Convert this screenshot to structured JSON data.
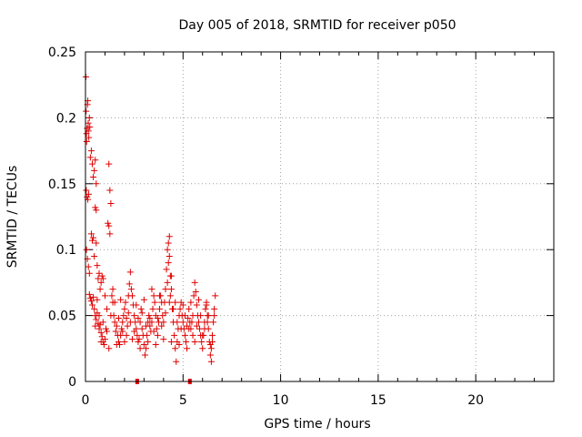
{
  "chart_data": {
    "type": "scatter",
    "title": "Day 005 of 2018, SRMTID for receiver p050",
    "xlabel": "GPS time / hours",
    "ylabel": "SRMTID / TECUs",
    "xlim": [
      0,
      24
    ],
    "ylim": [
      0,
      0.25
    ],
    "x_ticks": [
      0,
      5,
      10,
      15,
      20
    ],
    "x_tick_labels": [
      "0",
      "5",
      "10",
      "15",
      "20"
    ],
    "y_ticks": [
      0,
      0.05,
      0.1,
      0.15,
      0.2,
      0.25
    ],
    "y_tick_labels": [
      "0",
      "0.05",
      "0.1",
      "0.15",
      "0.2",
      "0.25"
    ],
    "grid": true,
    "marker": "+",
    "color": "#e00000",
    "series": [
      {
        "name": "SRMTID",
        "points": [
          [
            0.02,
            0.231
          ],
          [
            0.03,
            0.205
          ],
          [
            0.05,
            0.188
          ],
          [
            0.06,
            0.182
          ],
          [
            0.08,
            0.192
          ],
          [
            0.1,
            0.21
          ],
          [
            0.12,
            0.213
          ],
          [
            0.14,
            0.196
          ],
          [
            0.15,
            0.19
          ],
          [
            0.17,
            0.185
          ],
          [
            0.2,
            0.2
          ],
          [
            0.22,
            0.193
          ],
          [
            0.25,
            0.17
          ],
          [
            0.3,
            0.175
          ],
          [
            0.35,
            0.165
          ],
          [
            0.4,
            0.155
          ],
          [
            0.45,
            0.16
          ],
          [
            0.5,
            0.168
          ],
          [
            0.55,
            0.15
          ],
          [
            0.04,
            0.145
          ],
          [
            0.08,
            0.14
          ],
          [
            0.12,
            0.138
          ],
          [
            0.16,
            0.142
          ],
          [
            0.5,
            0.132
          ],
          [
            0.55,
            0.13
          ],
          [
            0.05,
            0.1
          ],
          [
            0.1,
            0.093
          ],
          [
            0.15,
            0.087
          ],
          [
            0.2,
            0.082
          ],
          [
            0.3,
            0.112
          ],
          [
            0.35,
            0.107
          ],
          [
            0.4,
            0.109
          ],
          [
            0.45,
            0.095
          ],
          [
            0.55,
            0.105
          ],
          [
            0.6,
            0.088
          ],
          [
            0.65,
            0.078
          ],
          [
            0.7,
            0.082
          ],
          [
            0.75,
            0.07
          ],
          [
            0.8,
            0.075
          ],
          [
            0.85,
            0.08
          ],
          [
            0.9,
            0.078
          ],
          [
            0.2,
            0.066
          ],
          [
            0.25,
            0.063
          ],
          [
            0.3,
            0.061
          ],
          [
            0.35,
            0.058
          ],
          [
            0.4,
            0.064
          ],
          [
            0.45,
            0.055
          ],
          [
            0.5,
            0.05
          ],
          [
            0.55,
            0.047
          ],
          [
            0.6,
            0.052
          ],
          [
            0.65,
            0.044
          ],
          [
            0.7,
            0.04
          ],
          [
            0.75,
            0.043
          ],
          [
            0.8,
            0.037
          ],
          [
            0.85,
            0.034
          ],
          [
            0.9,
            0.03
          ],
          [
            0.95,
            0.028
          ],
          [
            1.0,
            0.032
          ],
          [
            1.05,
            0.04
          ],
          [
            1.1,
            0.055
          ],
          [
            1.15,
            0.12
          ],
          [
            1.2,
            0.118
          ],
          [
            1.25,
            0.112
          ],
          [
            1.2,
            0.165
          ],
          [
            1.25,
            0.145
          ],
          [
            1.3,
            0.135
          ],
          [
            1.35,
            0.065
          ],
          [
            1.4,
            0.06
          ],
          [
            1.45,
            0.05
          ],
          [
            1.5,
            0.045
          ],
          [
            1.55,
            0.038
          ],
          [
            1.6,
            0.042
          ],
          [
            1.65,
            0.035
          ],
          [
            1.7,
            0.03
          ],
          [
            1.75,
            0.028
          ],
          [
            1.8,
            0.035
          ],
          [
            1.85,
            0.04
          ],
          [
            1.9,
            0.045
          ],
          [
            1.95,
            0.05
          ],
          [
            2.0,
            0.055
          ],
          [
            2.05,
            0.06
          ],
          [
            2.1,
            0.048
          ],
          [
            2.15,
            0.042
          ],
          [
            2.2,
            0.052
          ],
          [
            2.25,
            0.074
          ],
          [
            2.3,
            0.083
          ],
          [
            2.35,
            0.07
          ],
          [
            2.4,
            0.065
          ],
          [
            2.45,
            0.058
          ],
          [
            2.5,
            0.05
          ],
          [
            2.55,
            0.045
          ],
          [
            2.6,
            0.04
          ],
          [
            2.65,
            0.035
          ],
          [
            2.7,
            0.03
          ],
          [
            2.75,
            0.032
          ],
          [
            2.8,
            0.045
          ],
          [
            2.85,
            0.055
          ],
          [
            2.9,
            0.04
          ],
          [
            2.95,
            0.035
          ],
          [
            3.0,
            0.028
          ],
          [
            3.05,
            0.02
          ],
          [
            3.1,
            0.025
          ],
          [
            3.15,
            0.035
          ],
          [
            3.2,
            0.045
          ],
          [
            3.25,
            0.05
          ],
          [
            3.3,
            0.042
          ],
          [
            3.35,
            0.038
          ],
          [
            3.4,
            0.045
          ],
          [
            3.45,
            0.055
          ],
          [
            3.5,
            0.065
          ],
          [
            3.55,
            0.06
          ],
          [
            3.6,
            0.05
          ],
          [
            3.65,
            0.04
          ],
          [
            3.7,
            0.035
          ],
          [
            3.75,
            0.045
          ],
          [
            3.8,
            0.055
          ],
          [
            3.85,
            0.065
          ],
          [
            3.9,
            0.06
          ],
          [
            3.95,
            0.05
          ],
          [
            4.0,
            0.045
          ],
          [
            4.05,
            0.06
          ],
          [
            4.1,
            0.07
          ],
          [
            4.15,
            0.085
          ],
          [
            4.2,
            0.1
          ],
          [
            4.25,
            0.105
          ],
          [
            4.3,
            0.095
          ],
          [
            4.35,
            0.08
          ],
          [
            4.4,
            0.07
          ],
          [
            4.45,
            0.055
          ],
          [
            4.5,
            0.045
          ],
          [
            4.55,
            0.035
          ],
          [
            4.6,
            0.025
          ],
          [
            4.65,
            0.015
          ],
          [
            4.7,
            0.03
          ],
          [
            4.75,
            0.04
          ],
          [
            4.8,
            0.05
          ],
          [
            4.85,
            0.055
          ],
          [
            4.9,
            0.06
          ],
          [
            4.95,
            0.05
          ],
          [
            5.0,
            0.045
          ],
          [
            5.05,
            0.04
          ],
          [
            5.1,
            0.035
          ],
          [
            5.15,
            0.03
          ],
          [
            5.2,
            0.042
          ],
          [
            5.25,
            0.048
          ],
          [
            5.3,
            0.055
          ],
          [
            5.35,
            0.045
          ],
          [
            5.4,
            0.04
          ],
          [
            5.45,
            0.045
          ],
          [
            5.5,
            0.05
          ],
          [
            5.55,
            0.065
          ],
          [
            5.6,
            0.075
          ],
          [
            5.65,
            0.068
          ],
          [
            5.7,
            0.058
          ],
          [
            5.75,
            0.05
          ],
          [
            5.8,
            0.045
          ],
          [
            5.85,
            0.04
          ],
          [
            5.9,
            0.035
          ],
          [
            5.95,
            0.03
          ],
          [
            6.0,
            0.025
          ],
          [
            6.05,
            0.035
          ],
          [
            6.1,
            0.045
          ],
          [
            6.15,
            0.055
          ],
          [
            6.2,
            0.06
          ],
          [
            6.25,
            0.05
          ],
          [
            6.3,
            0.04
          ],
          [
            6.35,
            0.03
          ],
          [
            6.4,
            0.02
          ],
          [
            6.45,
            0.015
          ],
          [
            6.5,
            0.035
          ],
          [
            6.55,
            0.045
          ],
          [
            6.6,
            0.055
          ],
          [
            6.65,
            0.065
          ],
          [
            0.5,
            0.042
          ],
          [
            0.7,
            0.05
          ],
          [
            0.9,
            0.045
          ],
          [
            1.1,
            0.038
          ],
          [
            1.3,
            0.05
          ],
          [
            1.5,
            0.06
          ],
          [
            1.7,
            0.048
          ],
          [
            1.9,
            0.038
          ],
          [
            2.1,
            0.035
          ],
          [
            2.3,
            0.045
          ],
          [
            2.5,
            0.038
          ],
          [
            2.7,
            0.048
          ],
          [
            2.9,
            0.052
          ],
          [
            3.1,
            0.042
          ],
          [
            3.3,
            0.048
          ],
          [
            3.5,
            0.038
          ],
          [
            3.7,
            0.048
          ],
          [
            3.9,
            0.042
          ],
          [
            4.1,
            0.052
          ],
          [
            4.3,
            0.06
          ],
          [
            4.5,
            0.055
          ],
          [
            4.7,
            0.045
          ],
          [
            4.9,
            0.04
          ],
          [
            5.1,
            0.05
          ],
          [
            5.3,
            0.04
          ],
          [
            5.5,
            0.035
          ],
          [
            5.7,
            0.042
          ],
          [
            5.9,
            0.05
          ],
          [
            6.1,
            0.04
          ],
          [
            6.3,
            0.05
          ],
          [
            6.5,
            0.03
          ],
          [
            0.6,
            0.062
          ],
          [
            1.0,
            0.065
          ],
          [
            1.4,
            0.07
          ],
          [
            1.8,
            0.062
          ],
          [
            2.2,
            0.065
          ],
          [
            2.6,
            0.058
          ],
          [
            3.0,
            0.062
          ],
          [
            3.4,
            0.07
          ],
          [
            3.8,
            0.065
          ],
          [
            4.2,
            0.075
          ],
          [
            4.6,
            0.06
          ],
          [
            5.0,
            0.058
          ],
          [
            5.4,
            0.06
          ],
          [
            5.8,
            0.062
          ],
          [
            6.2,
            0.058
          ],
          [
            6.6,
            0.05
          ],
          [
            0.8,
            0.03
          ],
          [
            1.2,
            0.025
          ],
          [
            1.6,
            0.028
          ],
          [
            2.0,
            0.03
          ],
          [
            2.4,
            0.032
          ],
          [
            2.8,
            0.025
          ],
          [
            3.2,
            0.03
          ],
          [
            3.6,
            0.028
          ],
          [
            4.0,
            0.032
          ],
          [
            4.4,
            0.03
          ],
          [
            4.8,
            0.028
          ],
          [
            5.2,
            0.025
          ],
          [
            5.6,
            0.03
          ],
          [
            6.0,
            0.035
          ],
          [
            6.4,
            0.028
          ],
          [
            4.3,
            0.11
          ],
          [
            4.25,
            0.09
          ],
          [
            4.35,
            0.065
          ],
          [
            4.4,
            0.08
          ],
          [
            6.25,
            0.045
          ],
          [
            6.45,
            0.025
          ]
        ]
      }
    ],
    "axis_markers": [
      2.65,
      5.35
    ]
  }
}
